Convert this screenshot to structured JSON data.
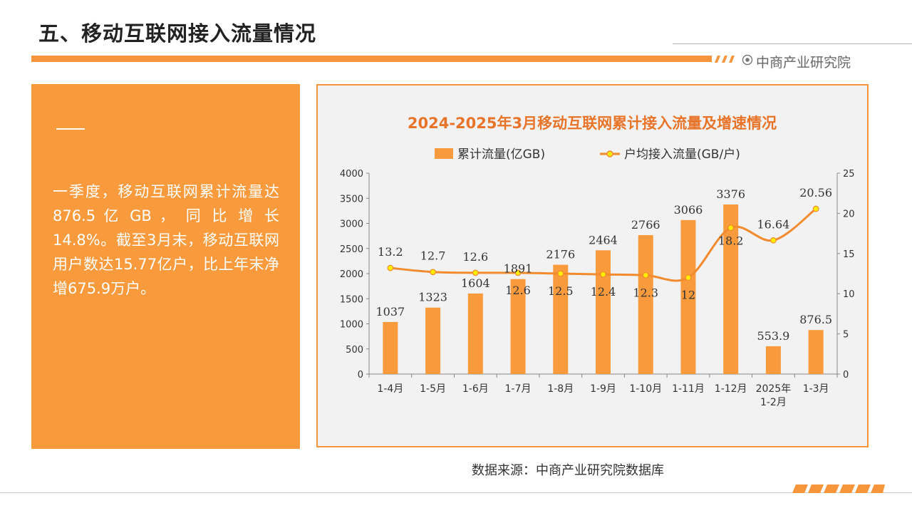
{
  "page_title": "五、移动互联网接入流量情况",
  "brand": "中商产业研究院",
  "summary": "一季度，移动互联网累计流量达 876.5 亿 GB ， 同 比 增 长 14.8%。截至3月末，移动互联网用户数达15.77亿户，比上年末净增675.9万户。",
  "source": "数据来源：中商产业研究院数据库",
  "colors": {
    "accent": "#f7953c",
    "bar": "#f99a3d",
    "line": "#f28a2e",
    "marker": "#ffee00",
    "panel_bg": "#f2f2f2"
  },
  "chart_data": {
    "type": "bar",
    "title": "2024-2025年3月移动互联网累计接入流量及增速情况",
    "categories": [
      "1-4月",
      "1-5月",
      "1-6月",
      "1-7月",
      "1-8月",
      "1-9月",
      "1-10月",
      "1-11月",
      "1-12月",
      "2025年 1-2月",
      "1-3月"
    ],
    "series": [
      {
        "name": "累计流量(亿GB)",
        "type": "bar",
        "axis": "left",
        "values": [
          1037,
          1323,
          1604,
          1891,
          2176,
          2464,
          2766,
          3066,
          3376,
          553.9,
          876.5
        ]
      },
      {
        "name": "户均接入流量(GB/户)",
        "type": "line",
        "axis": "right",
        "values": [
          13.2,
          12.7,
          12.6,
          12.6,
          12.5,
          12.4,
          12.3,
          12,
          18.2,
          16.64,
          20.56
        ]
      }
    ],
    "y_left": {
      "min": 0,
      "max": 4000,
      "step": 500
    },
    "y_right": {
      "min": 0,
      "max": 25,
      "step": 5
    },
    "legend_position": "top",
    "grid": false
  }
}
